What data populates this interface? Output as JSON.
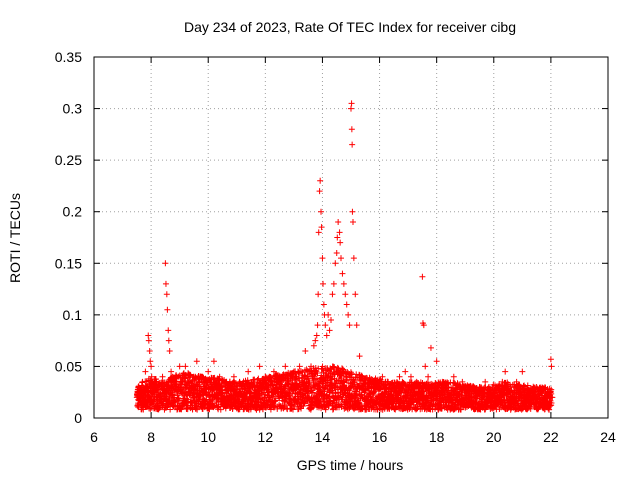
{
  "chart_data": {
    "type": "scatter",
    "title": "Day 234 of 2023, Rate Of TEC Index for receiver cibg",
    "xlabel": "GPS time / hours",
    "ylabel": "ROTI / TECUs",
    "xlim": [
      6,
      24
    ],
    "ylim": [
      0,
      0.35
    ],
    "x_ticks": [
      6,
      8,
      10,
      12,
      14,
      16,
      18,
      20,
      22,
      24
    ],
    "y_ticks": [
      0,
      0.05,
      0.1,
      0.15,
      0.2,
      0.25,
      0.3,
      0.35
    ],
    "x_tick_labels": [
      "6",
      "8",
      "10",
      "12",
      "14",
      "16",
      "18",
      "20",
      "22",
      "24"
    ],
    "y_tick_labels": [
      "0",
      "0.05",
      "0.1",
      "0.15",
      "0.2",
      "0.25",
      "0.3",
      "0.35"
    ],
    "grid": true,
    "marker": "+",
    "color": "#ff0000",
    "series": [
      {
        "name": "ROTI",
        "points": [
          [
            7.5,
            0.02
          ],
          [
            7.55,
            0.03
          ],
          [
            7.6,
            0.025
          ],
          [
            7.65,
            0.015
          ],
          [
            7.7,
            0.035
          ],
          [
            7.75,
            0.02
          ],
          [
            7.8,
            0.045
          ],
          [
            7.85,
            0.03
          ],
          [
            7.9,
            0.08
          ],
          [
            7.92,
            0.075
          ],
          [
            7.95,
            0.065
          ],
          [
            7.97,
            0.055
          ],
          [
            8.0,
            0.05
          ],
          [
            8.02,
            0.04
          ],
          [
            8.05,
            0.035
          ],
          [
            8.1,
            0.025
          ],
          [
            8.2,
            0.03
          ],
          [
            8.3,
            0.02
          ],
          [
            8.4,
            0.04
          ],
          [
            8.5,
            0.15
          ],
          [
            8.52,
            0.13
          ],
          [
            8.55,
            0.12
          ],
          [
            8.57,
            0.105
          ],
          [
            8.6,
            0.085
          ],
          [
            8.62,
            0.075
          ],
          [
            8.65,
            0.065
          ],
          [
            8.7,
            0.045
          ],
          [
            8.8,
            0.03
          ],
          [
            8.9,
            0.04
          ],
          [
            9.0,
            0.05
          ],
          [
            9.1,
            0.035
          ],
          [
            9.2,
            0.05
          ],
          [
            9.3,
            0.025
          ],
          [
            9.4,
            0.035
          ],
          [
            9.5,
            0.02
          ],
          [
            9.6,
            0.055
          ],
          [
            9.7,
            0.03
          ],
          [
            9.8,
            0.04
          ],
          [
            9.9,
            0.025
          ],
          [
            10.0,
            0.045
          ],
          [
            10.1,
            0.03
          ],
          [
            10.2,
            0.055
          ],
          [
            10.3,
            0.02
          ],
          [
            10.4,
            0.04
          ],
          [
            10.5,
            0.025
          ],
          [
            10.6,
            0.035
          ],
          [
            10.7,
            0.02
          ],
          [
            10.8,
            0.03
          ],
          [
            10.9,
            0.04
          ],
          [
            11.0,
            0.025
          ],
          [
            11.1,
            0.035
          ],
          [
            11.2,
            0.02
          ],
          [
            11.3,
            0.03
          ],
          [
            11.4,
            0.045
          ],
          [
            11.5,
            0.025
          ],
          [
            11.6,
            0.035
          ],
          [
            11.7,
            0.02
          ],
          [
            11.8,
            0.05
          ],
          [
            11.9,
            0.03
          ],
          [
            12.0,
            0.04
          ],
          [
            12.1,
            0.025
          ],
          [
            12.2,
            0.035
          ],
          [
            12.3,
            0.045
          ],
          [
            12.4,
            0.03
          ],
          [
            12.5,
            0.04
          ],
          [
            12.6,
            0.025
          ],
          [
            12.7,
            0.05
          ],
          [
            12.8,
            0.035
          ],
          [
            12.9,
            0.03
          ],
          [
            13.0,
            0.045
          ],
          [
            13.1,
            0.04
          ],
          [
            13.2,
            0.05
          ],
          [
            13.3,
            0.035
          ],
          [
            13.4,
            0.065
          ],
          [
            13.5,
            0.04
          ],
          [
            13.6,
            0.05
          ],
          [
            13.7,
            0.07
          ],
          [
            13.75,
            0.075
          ],
          [
            13.8,
            0.08
          ],
          [
            13.83,
            0.09
          ],
          [
            13.85,
            0.12
          ],
          [
            13.87,
            0.18
          ],
          [
            13.9,
            0.22
          ],
          [
            13.92,
            0.23
          ],
          [
            13.95,
            0.2
          ],
          [
            13.97,
            0.185
          ],
          [
            14.0,
            0.155
          ],
          [
            14.02,
            0.13
          ],
          [
            14.05,
            0.11
          ],
          [
            14.07,
            0.1
          ],
          [
            14.1,
            0.09
          ],
          [
            14.15,
            0.08
          ],
          [
            14.2,
            0.1
          ],
          [
            14.25,
            0.085
          ],
          [
            14.3,
            0.095
          ],
          [
            14.35,
            0.12
          ],
          [
            14.4,
            0.13
          ],
          [
            14.45,
            0.15
          ],
          [
            14.5,
            0.16
          ],
          [
            14.52,
            0.175
          ],
          [
            14.55,
            0.19
          ],
          [
            14.6,
            0.18
          ],
          [
            14.62,
            0.17
          ],
          [
            14.65,
            0.155
          ],
          [
            14.7,
            0.14
          ],
          [
            14.75,
            0.13
          ],
          [
            14.8,
            0.12
          ],
          [
            14.85,
            0.11
          ],
          [
            14.9,
            0.1
          ],
          [
            14.95,
            0.09
          ],
          [
            15.0,
            0.3
          ],
          [
            15.02,
            0.305
          ],
          [
            15.03,
            0.28
          ],
          [
            15.04,
            0.265
          ],
          [
            15.05,
            0.2
          ],
          [
            15.07,
            0.19
          ],
          [
            15.1,
            0.155
          ],
          [
            15.15,
            0.12
          ],
          [
            15.2,
            0.09
          ],
          [
            15.3,
            0.06
          ],
          [
            15.4,
            0.04
          ],
          [
            15.5,
            0.035
          ],
          [
            15.6,
            0.03
          ],
          [
            15.7,
            0.025
          ],
          [
            15.8,
            0.035
          ],
          [
            15.9,
            0.02
          ],
          [
            16.0,
            0.03
          ],
          [
            16.1,
            0.04
          ],
          [
            16.2,
            0.025
          ],
          [
            16.3,
            0.035
          ],
          [
            16.4,
            0.02
          ],
          [
            16.5,
            0.03
          ],
          [
            16.6,
            0.025
          ],
          [
            16.7,
            0.04
          ],
          [
            16.8,
            0.035
          ],
          [
            16.9,
            0.045
          ],
          [
            17.0,
            0.03
          ],
          [
            17.1,
            0.04
          ],
          [
            17.2,
            0.025
          ],
          [
            17.3,
            0.035
          ],
          [
            17.4,
            0.03
          ],
          [
            17.5,
            0.137
          ],
          [
            17.52,
            0.092
          ],
          [
            17.55,
            0.09
          ],
          [
            17.6,
            0.05
          ],
          [
            17.7,
            0.04
          ],
          [
            17.8,
            0.068
          ],
          [
            17.9,
            0.03
          ],
          [
            18.0,
            0.055
          ],
          [
            18.1,
            0.025
          ],
          [
            18.2,
            0.035
          ],
          [
            18.3,
            0.02
          ],
          [
            18.4,
            0.03
          ],
          [
            18.5,
            0.025
          ],
          [
            18.6,
            0.04
          ],
          [
            18.7,
            0.02
          ],
          [
            18.8,
            0.03
          ],
          [
            18.9,
            0.035
          ],
          [
            19.0,
            0.025
          ],
          [
            19.1,
            0.02
          ],
          [
            19.2,
            0.03
          ],
          [
            19.3,
            0.015
          ],
          [
            19.4,
            0.025
          ],
          [
            19.5,
            0.03
          ],
          [
            19.6,
            0.02
          ],
          [
            19.7,
            0.035
          ],
          [
            19.8,
            0.025
          ],
          [
            19.9,
            0.015
          ],
          [
            20.0,
            0.025
          ],
          [
            20.1,
            0.02
          ],
          [
            20.2,
            0.03
          ],
          [
            20.3,
            0.035
          ],
          [
            20.4,
            0.045
          ],
          [
            20.5,
            0.025
          ],
          [
            20.6,
            0.03
          ],
          [
            20.7,
            0.02
          ],
          [
            20.8,
            0.035
          ],
          [
            20.9,
            0.025
          ],
          [
            21.0,
            0.045
          ],
          [
            21.1,
            0.03
          ],
          [
            21.2,
            0.02
          ],
          [
            21.3,
            0.025
          ],
          [
            21.4,
            0.015
          ],
          [
            21.5,
            0.03
          ],
          [
            21.6,
            0.02
          ],
          [
            21.7,
            0.025
          ],
          [
            21.8,
            0.015
          ],
          [
            21.9,
            0.02
          ],
          [
            22.0,
            0.057
          ],
          [
            22.02,
            0.05
          ],
          [
            22.05,
            0.02
          ]
        ],
        "envelope": [
          [
            7.5,
            0.03
          ],
          [
            7.7,
            0.035
          ],
          [
            8.0,
            0.04
          ],
          [
            8.4,
            0.035
          ],
          [
            9.0,
            0.045
          ],
          [
            10.0,
            0.04
          ],
          [
            11.0,
            0.035
          ],
          [
            12.0,
            0.04
          ],
          [
            13.0,
            0.045
          ],
          [
            13.8,
            0.05
          ],
          [
            14.5,
            0.05
          ],
          [
            15.5,
            0.04
          ],
          [
            16.5,
            0.035
          ],
          [
            17.5,
            0.035
          ],
          [
            18.5,
            0.035
          ],
          [
            19.5,
            0.03
          ],
          [
            20.5,
            0.035
          ],
          [
            21.5,
            0.03
          ],
          [
            22.0,
            0.03
          ]
        ]
      }
    ]
  }
}
